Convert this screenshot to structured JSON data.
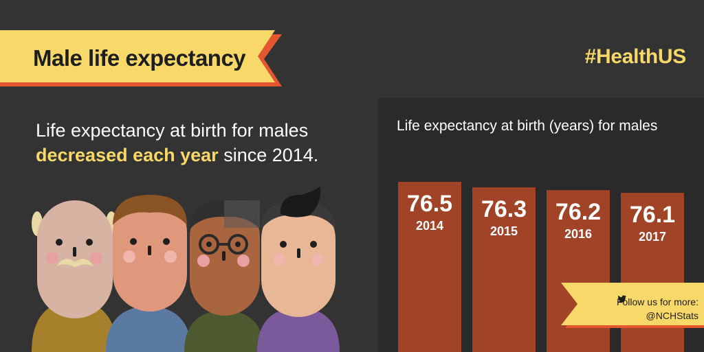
{
  "header": {
    "title": "Male life expectancy",
    "hashtag": "#HealthUS"
  },
  "intro": {
    "line1": "Life expectancy at birth for males",
    "highlight": "decreased each year",
    "line2_rest": " since 2014."
  },
  "chart_data": {
    "type": "bar",
    "title": "Life expectancy at birth (years) for males",
    "categories": [
      "2014",
      "2015",
      "2016",
      "2017"
    ],
    "values": [
      76.5,
      76.3,
      76.2,
      76.1
    ],
    "value_labels": [
      "76.5",
      "76.3",
      "76.2",
      "76.1"
    ],
    "xlabel": "",
    "ylabel": "",
    "grid": false,
    "legend": "none"
  },
  "footer": {
    "follow_text": "Follow us for more:",
    "handle": "@NCHStats"
  },
  "icons": {
    "social": "twitter-bird-icon",
    "illustration": "four-men-faces"
  },
  "colors": {
    "background": "#333333",
    "panel": "#2a2a2a",
    "bar": "#a04326",
    "banner": "#f7d868",
    "banner_edge": "#e4572e",
    "highlight": "#f7d868"
  }
}
